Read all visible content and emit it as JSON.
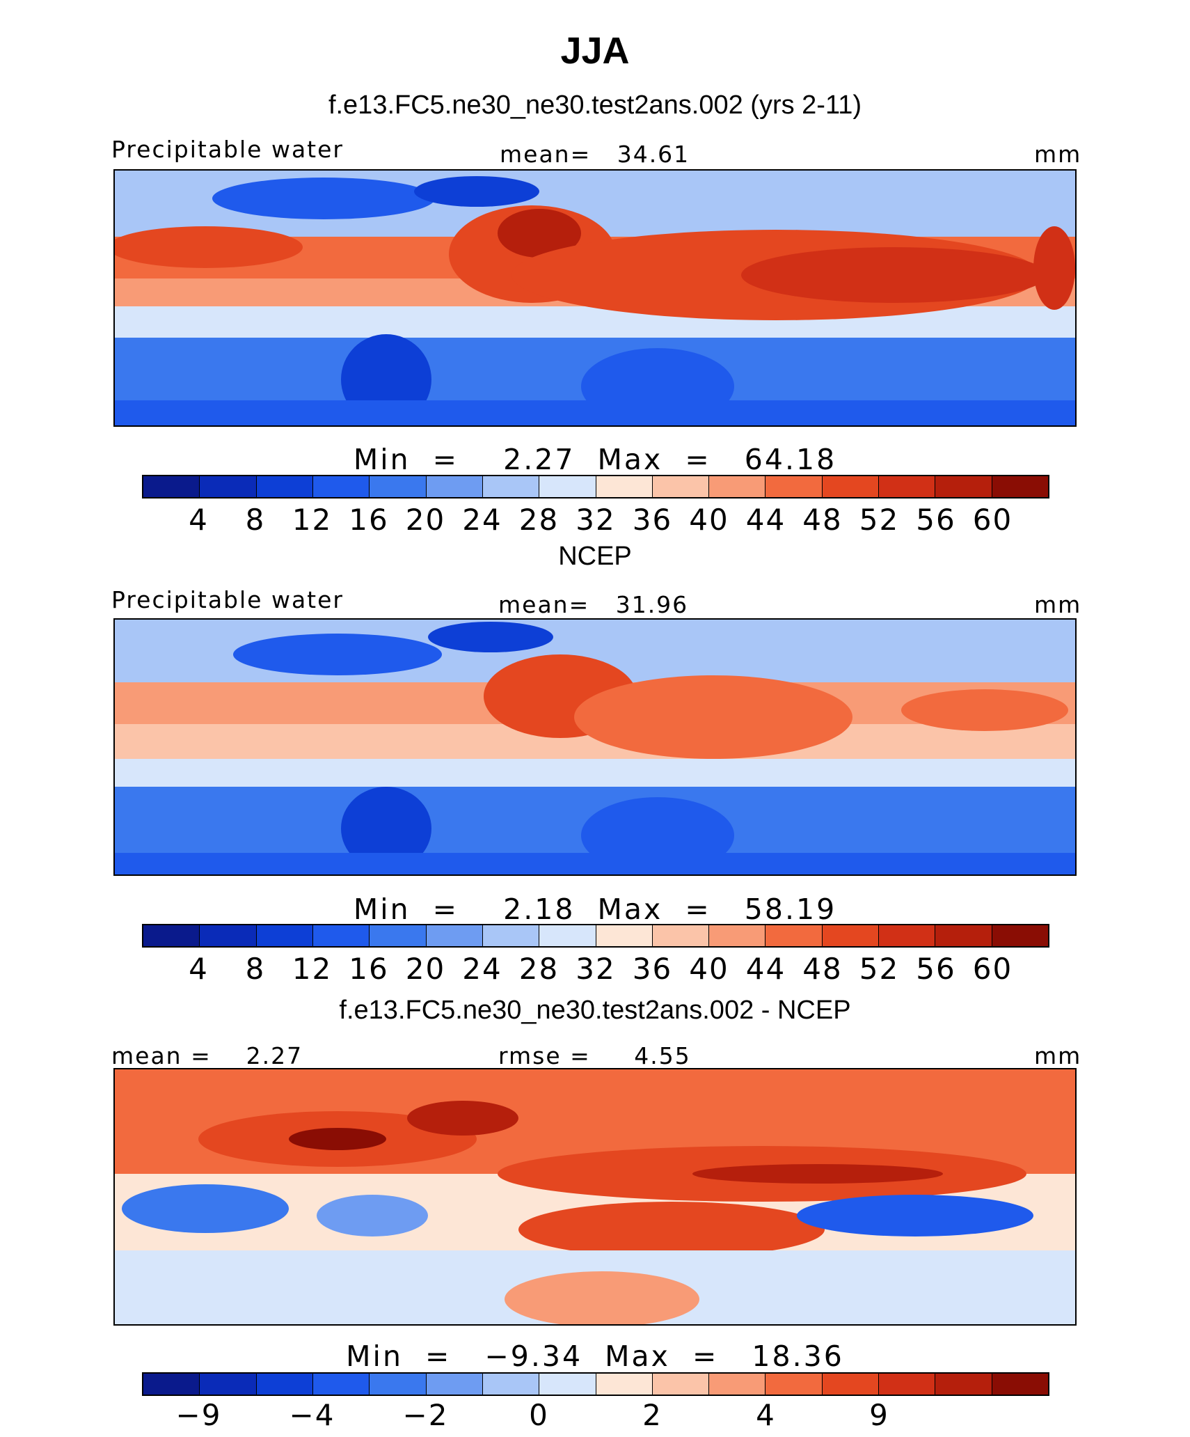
{
  "title": "JJA",
  "colors": [
    "#0a1a8c",
    "#0a2bb8",
    "#0d3fd6",
    "#1f5aec",
    "#3a78ee",
    "#6e9cf2",
    "#a9c6f7",
    "#d7e6fb",
    "#fde6d6",
    "#fbc4a9",
    "#f89b76",
    "#f26a3e",
    "#e44720",
    "#d13016",
    "#b51f0c",
    "#8a0d04"
  ],
  "panels": [
    {
      "title": "f.e13.FC5.ne30_ne30.test2ans.002 (yrs 2-11)",
      "left_label": "Precipitable water",
      "center_label": "mean=   34.61",
      "units": "mm",
      "stats": "Min  =    2.27  Max  =   64.18",
      "ticks": [
        "4",
        "8",
        "12",
        "16",
        "20",
        "24",
        "28",
        "32",
        "36",
        "40",
        "44",
        "48",
        "52",
        "56",
        "60"
      ]
    },
    {
      "title": "NCEP",
      "left_label": "Precipitable water",
      "center_label": "mean=   31.96",
      "units": "mm",
      "stats": "Min  =    2.18  Max  =   58.19",
      "ticks": [
        "4",
        "8",
        "12",
        "16",
        "20",
        "24",
        "28",
        "32",
        "36",
        "40",
        "44",
        "48",
        "52",
        "56",
        "60"
      ]
    },
    {
      "title": "f.e13.FC5.ne30_ne30.test2ans.002 - NCEP",
      "left_label": "mean =    2.27",
      "center_label": "rmse =     4.55",
      "units": "mm",
      "stats": "Min  =   −9.34  Max  =   18.36",
      "ticks": [
        "−9",
        "",
        "−4",
        "",
        "−2",
        "",
        "0",
        "",
        "2",
        "",
        "4",
        "",
        "9",
        "",
        ""
      ]
    }
  ],
  "chart_data": [
    {
      "type": "heatmap",
      "title": "f.e13.FC5.ne30_ne30.test2ans.002 (yrs 2-11)",
      "variable": "Precipitable water",
      "units": "mm",
      "mean": 34.61,
      "min": 2.27,
      "max": 64.18,
      "levels": [
        4,
        8,
        12,
        16,
        20,
        24,
        28,
        32,
        36,
        40,
        44,
        48,
        52,
        56,
        60
      ]
    },
    {
      "type": "heatmap",
      "title": "NCEP",
      "variable": "Precipitable water",
      "units": "mm",
      "mean": 31.96,
      "min": 2.18,
      "max": 58.19,
      "levels": [
        4,
        8,
        12,
        16,
        20,
        24,
        28,
        32,
        36,
        40,
        44,
        48,
        52,
        56,
        60
      ]
    },
    {
      "type": "heatmap",
      "title": "f.e13.FC5.ne30_ne30.test2ans.002 - NCEP",
      "units": "mm",
      "mean": 2.27,
      "rmse": 4.55,
      "min": -9.34,
      "max": 18.36,
      "levels": [
        -9,
        -6,
        -4,
        -3,
        -2,
        -1,
        0,
        1,
        2,
        3,
        4,
        6,
        9,
        12,
        15
      ]
    }
  ]
}
